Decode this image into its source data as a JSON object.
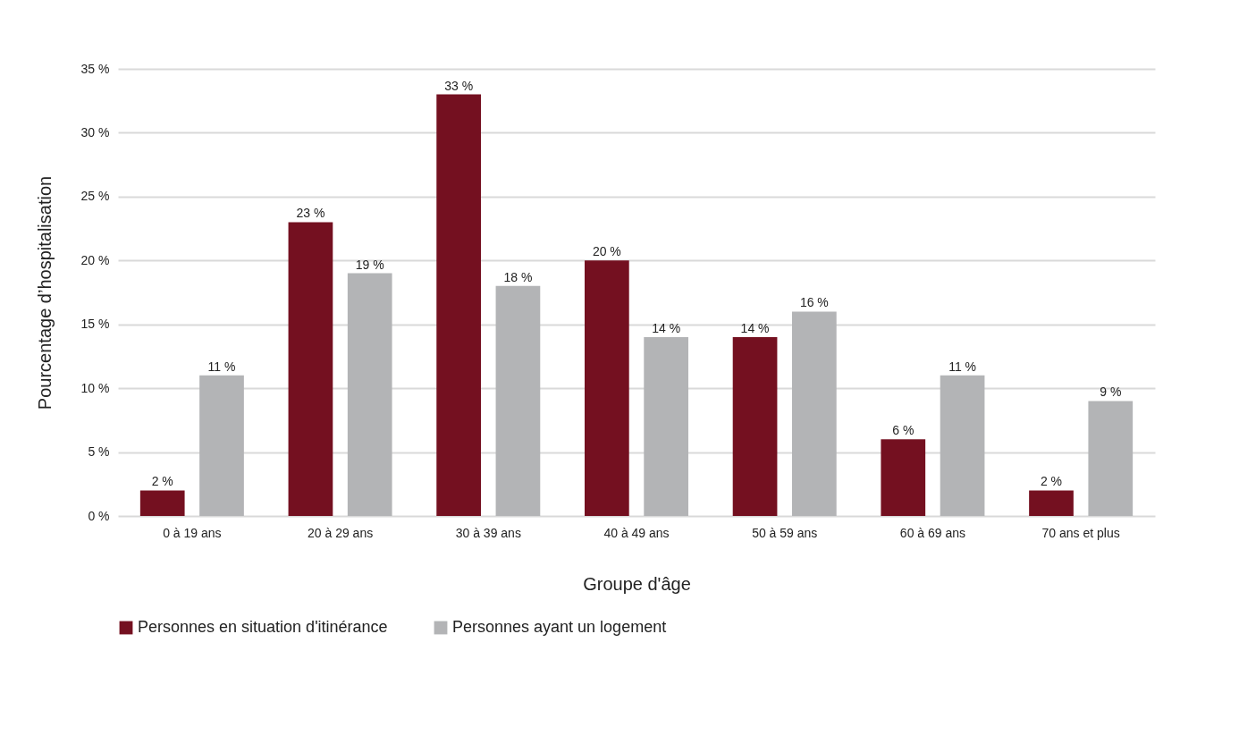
{
  "chart_data": {
    "type": "bar",
    "xlabel": "Groupe d'âge",
    "ylabel": "Pourcentage d’hospitalisation",
    "categories": [
      "0 à 19 ans",
      "20 à 29 ans",
      "30 à 39 ans",
      "40 à 49 ans",
      "50 à 59 ans",
      "60 à 69 ans",
      "70 ans et plus"
    ],
    "series": [
      {
        "name": "Personnes en situation d'itinérance",
        "color": "#741020",
        "values": [
          2,
          23,
          33,
          20,
          14,
          6,
          2
        ],
        "value_labels": [
          "2 %",
          "23 %",
          "33 %",
          "20 %",
          "14 %",
          "6 %",
          "2 %"
        ]
      },
      {
        "name": "Personnes ayant un logement",
        "color": "#b3b4b6",
        "values": [
          11,
          19,
          18,
          14,
          16,
          11,
          9
        ],
        "value_labels": [
          "11 %",
          "19 %",
          "18 %",
          "14 %",
          "16 %",
          "11 %",
          "9 %"
        ]
      }
    ],
    "ylim": [
      0,
      35
    ],
    "yticks": [
      {
        "value": 0,
        "label": "0 %"
      },
      {
        "value": 5,
        "label": "5 %"
      },
      {
        "value": 10,
        "label": "10 %"
      },
      {
        "value": 15,
        "label": "15 %"
      },
      {
        "value": 20,
        "label": "20 %"
      },
      {
        "value": 25,
        "label": "25 %"
      },
      {
        "value": 30,
        "label": "30 %"
      },
      {
        "value": 35,
        "label": "35 %"
      }
    ],
    "grid": "y",
    "legend": "bottom"
  }
}
